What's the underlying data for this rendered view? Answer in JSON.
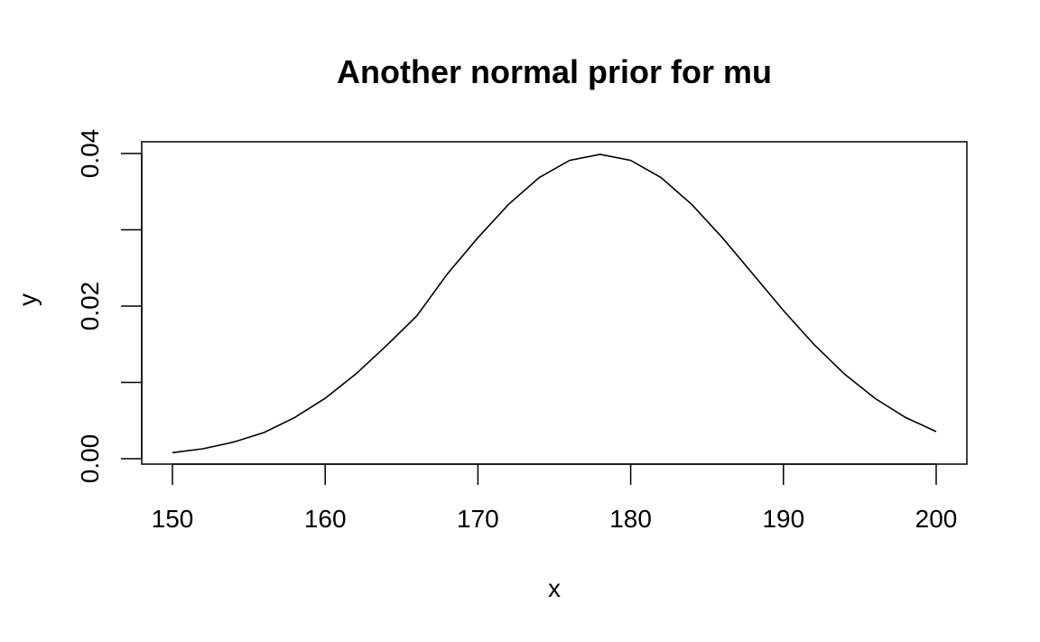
{
  "chart_data": {
    "type": "line",
    "title": "Another normal prior for mu",
    "xlabel": "x",
    "ylabel": "y",
    "xlim": [
      150,
      200
    ],
    "ylim": [
      0,
      0.04
    ],
    "x_ticks": [
      150,
      160,
      170,
      180,
      190,
      200
    ],
    "x_tick_labels": [
      "150",
      "160",
      "170",
      "180",
      "190",
      "200"
    ],
    "y_ticks": [
      0,
      0.01,
      0.02,
      0.03,
      0.04
    ],
    "y_tick_labels": [
      "0.00",
      "",
      "0.02",
      "",
      "0.04"
    ],
    "grid": false,
    "legend": "none",
    "series": [
      {
        "x": [
          150,
          152,
          154,
          156,
          158,
          160,
          162,
          164,
          166,
          168,
          170,
          172,
          174,
          176,
          178,
          180,
          182,
          184,
          186,
          188,
          190,
          192,
          194,
          196,
          198,
          200
        ],
        "y": [
          0.00079,
          0.0013,
          0.00218,
          0.00343,
          0.00539,
          0.00792,
          0.01109,
          0.0148,
          0.01872,
          0.02422,
          0.02897,
          0.03332,
          0.03683,
          0.0391,
          0.03989,
          0.0391,
          0.03683,
          0.03332,
          0.02897,
          0.0242,
          0.01942,
          0.01497,
          0.01109,
          0.0079,
          0.0054,
          0.00355
        ]
      }
    ]
  }
}
